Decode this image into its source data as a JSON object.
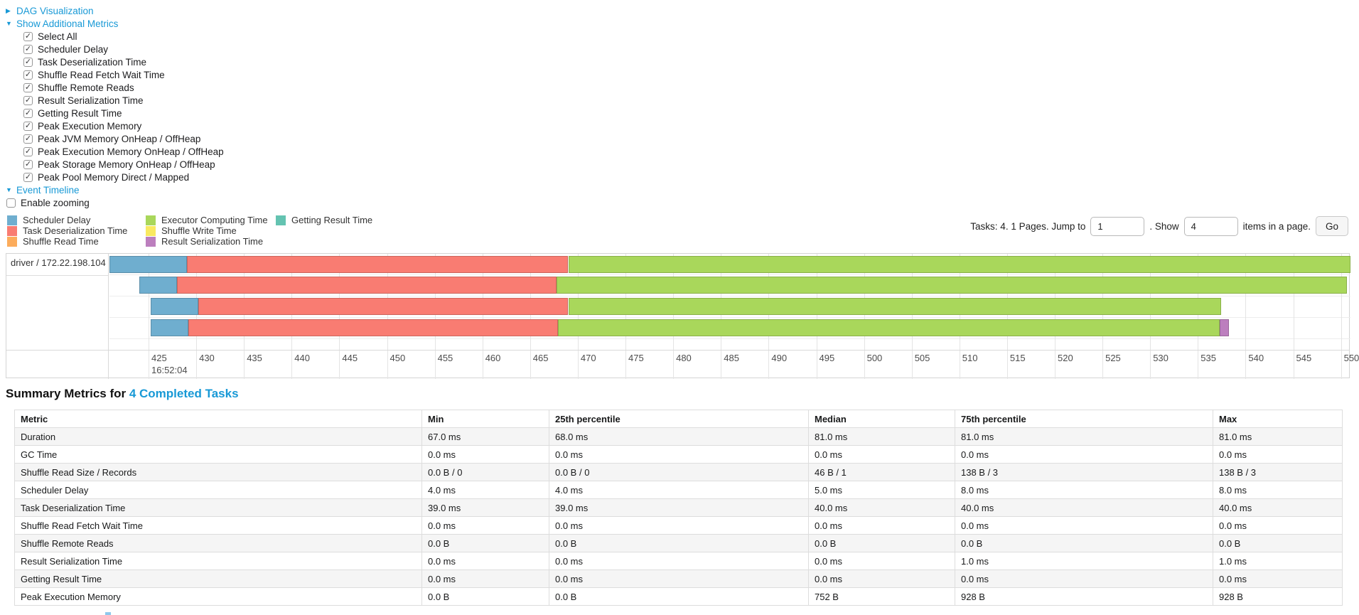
{
  "colors": {
    "link": "#1899d6",
    "scheduler": "#6faecf",
    "deserialization": "#f97c72",
    "shuffle_read": "#fcac5c",
    "compute": "#a9d75b",
    "shuffle_write": "#f9e960",
    "serialization": "#bc7fbe",
    "getting_result": "#64c3b1",
    "grid": "#e4e4e4"
  },
  "toggles": {
    "dag": "DAG Visualization",
    "metrics": "Show Additional Metrics",
    "timeline": "Event Timeline"
  },
  "metric_checkboxes": [
    "Select All",
    "Scheduler Delay",
    "Task Deserialization Time",
    "Shuffle Read Fetch Wait Time",
    "Shuffle Remote Reads",
    "Result Serialization Time",
    "Getting Result Time",
    "Peak Execution Memory",
    "Peak JVM Memory OnHeap / OffHeap",
    "Peak Execution Memory OnHeap / OffHeap",
    "Peak Storage Memory OnHeap / OffHeap",
    "Peak Pool Memory Direct / Mapped"
  ],
  "enable_zooming": "Enable zooming",
  "legend": {
    "columns": [
      [
        {
          "key": "scheduler",
          "label": "Scheduler Delay"
        },
        {
          "key": "deserialization",
          "label": "Task Deserialization Time"
        },
        {
          "key": "shuffle_read",
          "label": "Shuffle Read Time"
        }
      ],
      [
        {
          "key": "compute",
          "label": "Executor Computing Time"
        },
        {
          "key": "shuffle_write",
          "label": "Shuffle Write Time"
        },
        {
          "key": "serialization",
          "label": "Result Serialization Time"
        }
      ],
      [
        {
          "key": "getting_result",
          "label": "Getting Result Time"
        }
      ]
    ]
  },
  "pagination": {
    "text_before": "Tasks: 4. 1 Pages. Jump to",
    "jump_value": "1",
    "text_mid": ". Show",
    "show_value": "4",
    "text_after": "items in a page.",
    "go_label": "Go"
  },
  "chart_data": {
    "type": "timeline",
    "group_label": "driver / 172.22.198.104",
    "axis_min": 420.9,
    "axis_max": 551.0,
    "tick_min": 425,
    "tick_max": 550,
    "tick_step": 5,
    "time_label": "16:52:04",
    "time_label_at_tick": 425,
    "tasks": [
      {
        "segments": [
          {
            "key": "scheduler",
            "from": 420.9,
            "to": 429.0
          },
          {
            "key": "deserialization",
            "from": 429.0,
            "to": 469.0
          },
          {
            "key": "compute",
            "from": 469.0,
            "to": 551.0
          }
        ]
      },
      {
        "segments": [
          {
            "key": "scheduler",
            "from": 424.0,
            "to": 428.0
          },
          {
            "key": "deserialization",
            "from": 428.0,
            "to": 467.8
          },
          {
            "key": "compute",
            "from": 467.8,
            "to": 550.6
          }
        ]
      },
      {
        "segments": [
          {
            "key": "scheduler",
            "from": 425.2,
            "to": 430.2
          },
          {
            "key": "deserialization",
            "from": 430.2,
            "to": 469.0
          },
          {
            "key": "compute",
            "from": 469.0,
            "to": 537.4
          }
        ]
      },
      {
        "segments": [
          {
            "key": "scheduler",
            "from": 425.2,
            "to": 429.2
          },
          {
            "key": "deserialization",
            "from": 429.2,
            "to": 467.9
          },
          {
            "key": "compute",
            "from": 467.9,
            "to": 537.3
          },
          {
            "key": "serialization",
            "from": 537.3,
            "to": 538.3
          }
        ]
      }
    ]
  },
  "summary": {
    "title_prefix": "Summary Metrics for",
    "title_link": "4 Completed Tasks",
    "columns": [
      "Metric",
      "Min",
      "25th percentile",
      "Median",
      "75th percentile",
      "Max"
    ],
    "rows": [
      {
        "metric": "Duration",
        "values": [
          "67.0 ms",
          "68.0 ms",
          "81.0 ms",
          "81.0 ms",
          "81.0 ms"
        ]
      },
      {
        "metric": "GC Time",
        "values": [
          "0.0 ms",
          "0.0 ms",
          "0.0 ms",
          "0.0 ms",
          "0.0 ms"
        ]
      },
      {
        "metric": "Shuffle Read Size / Records",
        "values": [
          "0.0 B / 0",
          "0.0 B / 0",
          "46 B / 1",
          "138 B / 3",
          "138 B / 3"
        ]
      },
      {
        "metric": "Scheduler Delay",
        "values": [
          "4.0 ms",
          "4.0 ms",
          "5.0 ms",
          "8.0 ms",
          "8.0 ms"
        ]
      },
      {
        "metric": "Task Deserialization Time",
        "values": [
          "39.0 ms",
          "39.0 ms",
          "40.0 ms",
          "40.0 ms",
          "40.0 ms"
        ]
      },
      {
        "metric": "Shuffle Read Fetch Wait Time",
        "values": [
          "0.0 ms",
          "0.0 ms",
          "0.0 ms",
          "0.0 ms",
          "0.0 ms"
        ]
      },
      {
        "metric": "Shuffle Remote Reads",
        "values": [
          "0.0 B",
          "0.0 B",
          "0.0 B",
          "0.0 B",
          "0.0 B"
        ]
      },
      {
        "metric": "Result Serialization Time",
        "values": [
          "0.0 ms",
          "0.0 ms",
          "0.0 ms",
          "1.0 ms",
          "1.0 ms"
        ]
      },
      {
        "metric": "Getting Result Time",
        "values": [
          "0.0 ms",
          "0.0 ms",
          "0.0 ms",
          "0.0 ms",
          "0.0 ms"
        ]
      },
      {
        "metric": "Peak Execution Memory",
        "values": [
          "0.0 B",
          "0.0 B",
          "752 B",
          "928 B",
          "928 B"
        ]
      }
    ]
  }
}
